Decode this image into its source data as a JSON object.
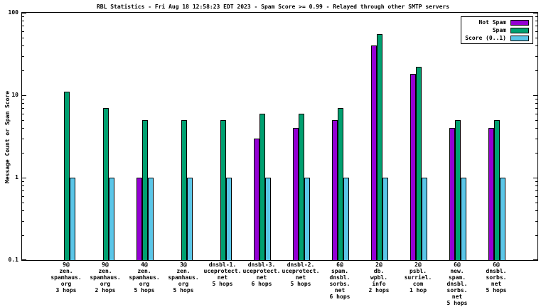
{
  "chart_data": {
    "type": "bar",
    "title": "RBL Statistics - Fri Aug 18 12:58:23 EDT 2023 - Spam Score >= 0.99 - Relayed through other SMTP servers",
    "ylabel": "Message Count or Spam Score",
    "yscale": "log",
    "ylim": [
      0.1,
      100
    ],
    "yticks": [
      0.1,
      1,
      10,
      100
    ],
    "ytick_labels": [
      "0.1",
      "1",
      "10",
      "100"
    ],
    "grid": false,
    "legend_position": "top-right",
    "categories": [
      "9@\nzen.\nspamhaus.\norg\n3 hops",
      "9@\nzen.\nspamhaus.\norg\n2 hops",
      "4@\nzen.\nspamhaus.\norg\n5 hops",
      "3@\nzen.\nspamhaus.\norg\n5 hops",
      "dnsbl-1.\nuceprotect.\nnet\n5 hops",
      "dnsbl-3.\nuceprotect.\nnet\n6 hops",
      "dnsbl-2.\nuceprotect.\nnet\n5 hops",
      "6@\nspam.\ndnsbl.\nsorbs.\nnet\n6 hops",
      "2@\ndb.\nwpbl.\ninfo\n2 hops",
      "2@\npsbl.\nsurriel.\ncom\n1 hop",
      "6@\nnew.\nspam.\ndnsbl.\nsorbs.\nnet\n5 hops",
      "6@\ndnsbl.\nsorbs.\nnet\n5 hops"
    ],
    "series": [
      {
        "name": "Not Spam",
        "color": "#9400d3",
        "values": [
          null,
          null,
          1,
          null,
          null,
          3,
          4,
          5,
          40,
          18,
          4,
          4
        ]
      },
      {
        "name": "Spam",
        "color": "#00a070",
        "values": [
          11,
          7,
          5,
          5,
          5,
          6,
          6,
          7,
          55,
          22,
          5,
          5
        ]
      },
      {
        "name": "Score (0..1)",
        "color": "#5bc6e8",
        "values": [
          1,
          1,
          1,
          1,
          1,
          1,
          1,
          1,
          1,
          1,
          1,
          1
        ]
      }
    ]
  }
}
